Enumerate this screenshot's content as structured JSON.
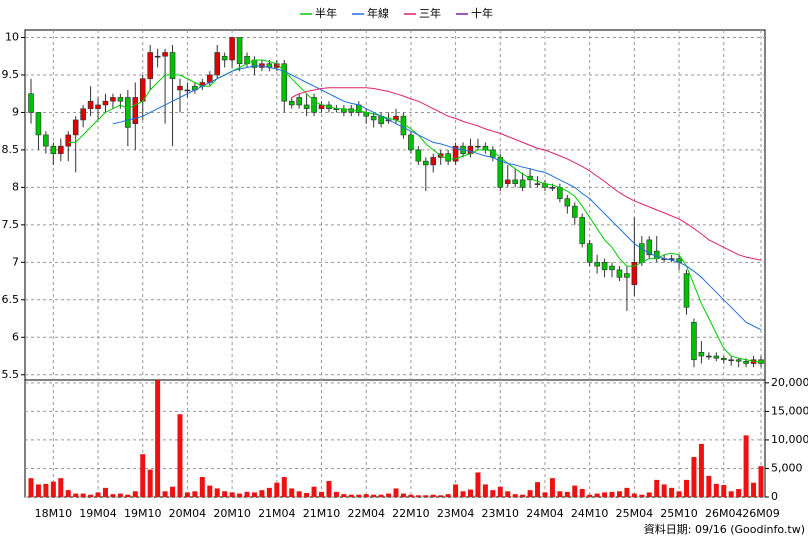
{
  "chart_data": {
    "type": "candlestick",
    "categories": [
      null,
      null,
      null,
      "18M10",
      null,
      null,
      null,
      null,
      null,
      "19M04",
      null,
      null,
      null,
      null,
      null,
      "19M10",
      null,
      null,
      null,
      null,
      null,
      "20M04",
      null,
      null,
      null,
      null,
      null,
      "20M10",
      null,
      null,
      null,
      null,
      null,
      "21M04",
      null,
      null,
      null,
      null,
      null,
      "21M10",
      null,
      null,
      null,
      null,
      null,
      "22M04",
      null,
      null,
      null,
      null,
      null,
      "22M10",
      null,
      null,
      null,
      null,
      null,
      "23M04",
      null,
      null,
      null,
      null,
      null,
      "23M10",
      null,
      null,
      null,
      null,
      null,
      "24M04",
      null,
      null,
      null,
      null,
      null,
      "24M10",
      null,
      null,
      null,
      null,
      null,
      "25M04",
      null,
      null,
      null,
      null,
      null,
      "25M10",
      null,
      null,
      null,
      null,
      null,
      "26M04",
      null,
      null,
      null,
      null,
      "26M09"
    ],
    "open": [
      9.25,
      9.0,
      8.7,
      8.55,
      8.45,
      8.55,
      8.7,
      8.9,
      9.05,
      9.05,
      9.1,
      9.15,
      9.2,
      9.2,
      8.85,
      9.15,
      9.45,
      9.75,
      9.75,
      9.8,
      9.3,
      9.3,
      9.35,
      9.35,
      9.4,
      9.5,
      9.75,
      9.7,
      10.0,
      9.75,
      9.7,
      9.6,
      9.65,
      9.6,
      9.65,
      9.15,
      9.2,
      9.1,
      9.2,
      9.05,
      9.1,
      9.05,
      9.05,
      9.05,
      9.1,
      9.0,
      8.95,
      8.95,
      8.9,
      8.9,
      8.95,
      8.7,
      8.5,
      8.35,
      8.3,
      8.4,
      8.45,
      8.35,
      8.55,
      8.45,
      8.55,
      8.55,
      8.5,
      8.4,
      8.05,
      8.1,
      8.1,
      8.15,
      8.05,
      8.05,
      8.0,
      8.0,
      7.85,
      7.75,
      7.6,
      7.25,
      7.0,
      7.0,
      6.95,
      6.9,
      6.85,
      6.7,
      7.25,
      7.3,
      7.15,
      7.05,
      7.05,
      7.05,
      6.85,
      6.2,
      5.8,
      5.75,
      5.75,
      5.72,
      5.7,
      5.7,
      5.68,
      5.65,
      5.7
    ],
    "high": [
      9.45,
      9.0,
      8.75,
      8.6,
      8.65,
      8.75,
      8.95,
      9.1,
      9.35,
      9.2,
      9.25,
      9.25,
      9.25,
      9.3,
      9.4,
      9.5,
      9.9,
      9.85,
      9.85,
      9.9,
      9.45,
      9.4,
      9.4,
      9.45,
      9.55,
      9.9,
      9.8,
      10.0,
      10.0,
      9.8,
      9.75,
      9.7,
      9.7,
      9.7,
      9.7,
      9.2,
      9.25,
      9.25,
      9.25,
      9.15,
      9.15,
      9.1,
      9.1,
      9.1,
      9.15,
      9.05,
      9.0,
      9.0,
      9.0,
      9.05,
      9.0,
      8.75,
      8.55,
      8.4,
      8.45,
      8.5,
      8.5,
      8.6,
      8.6,
      8.65,
      8.65,
      8.6,
      8.55,
      8.45,
      8.3,
      8.25,
      8.2,
      8.25,
      8.15,
      8.1,
      8.05,
      8.05,
      7.9,
      7.8,
      7.65,
      7.3,
      7.1,
      7.05,
      7.0,
      6.95,
      6.95,
      7.6,
      7.35,
      7.35,
      7.35,
      7.1,
      7.1,
      7.1,
      6.9,
      6.25,
      5.95,
      5.8,
      5.8,
      5.75,
      5.75,
      5.72,
      5.72,
      5.75,
      5.75
    ],
    "low": [
      8.85,
      8.5,
      8.45,
      8.3,
      8.35,
      8.35,
      8.2,
      8.8,
      8.95,
      8.9,
      9.0,
      9.05,
      9.05,
      8.55,
      8.5,
      8.9,
      9.3,
      9.6,
      8.85,
      8.55,
      9.0,
      9.2,
      9.25,
      9.3,
      9.35,
      9.45,
      9.6,
      9.6,
      9.55,
      9.6,
      9.5,
      9.55,
      9.55,
      9.55,
      9.0,
      9.05,
      9.05,
      8.95,
      8.95,
      9.0,
      9.0,
      9.0,
      8.95,
      8.95,
      8.95,
      8.85,
      8.8,
      8.8,
      8.85,
      8.85,
      8.65,
      8.45,
      8.3,
      7.95,
      8.2,
      8.3,
      8.3,
      8.3,
      8.4,
      8.4,
      8.5,
      8.45,
      8.35,
      7.95,
      8.0,
      8.0,
      7.95,
      8.0,
      8.0,
      7.95,
      7.95,
      7.8,
      7.65,
      7.5,
      7.2,
      6.95,
      6.85,
      6.8,
      6.8,
      6.75,
      6.35,
      6.55,
      6.95,
      7.05,
      7.0,
      7.0,
      7.0,
      6.9,
      6.3,
      5.6,
      5.65,
      5.7,
      5.68,
      5.65,
      5.62,
      5.6,
      5.6,
      5.6,
      5.6
    ],
    "close": [
      9.0,
      8.7,
      8.55,
      8.45,
      8.55,
      8.7,
      8.9,
      9.05,
      9.15,
      9.1,
      9.15,
      9.2,
      9.15,
      8.8,
      9.2,
      9.45,
      9.8,
      9.75,
      9.8,
      9.45,
      9.35,
      9.3,
      9.3,
      9.4,
      9.5,
      9.8,
      9.7,
      10.0,
      9.65,
      9.65,
      9.6,
      9.65,
      9.6,
      9.65,
      9.15,
      9.1,
      9.1,
      9.05,
      9.0,
      9.1,
      9.05,
      9.05,
      9.0,
      9.0,
      9.0,
      8.95,
      8.9,
      8.85,
      8.9,
      8.95,
      8.7,
      8.5,
      8.35,
      8.3,
      8.4,
      8.45,
      8.35,
      8.55,
      8.45,
      8.55,
      8.55,
      8.5,
      8.4,
      8.0,
      8.1,
      8.05,
      8.0,
      8.1,
      8.05,
      8.0,
      8.0,
      7.85,
      7.75,
      7.6,
      7.25,
      7.0,
      6.95,
      6.9,
      6.9,
      6.8,
      6.8,
      7.0,
      7.0,
      7.1,
      7.05,
      7.05,
      7.05,
      7.0,
      6.4,
      5.7,
      5.75,
      5.75,
      5.72,
      5.7,
      5.7,
      5.68,
      5.65,
      5.7,
      5.65
    ],
    "up_color": "#e00000",
    "down_color": "#00c000",
    "series": [
      {
        "name": "半年",
        "color": "#00cc00",
        "values": [
          null,
          null,
          null,
          null,
          null,
          8.6,
          8.6,
          8.7,
          8.8,
          8.9,
          9.0,
          9.05,
          9.1,
          9.05,
          9.1,
          9.15,
          9.3,
          9.4,
          9.5,
          9.5,
          9.5,
          9.45,
          9.4,
          9.35,
          9.35,
          9.45,
          9.5,
          9.55,
          9.6,
          9.65,
          9.7,
          9.7,
          9.68,
          9.65,
          9.55,
          9.45,
          9.35,
          9.25,
          9.15,
          9.1,
          9.08,
          9.05,
          9.05,
          9.03,
          9.02,
          9.0,
          8.98,
          8.95,
          8.92,
          8.9,
          8.85,
          8.78,
          8.7,
          8.58,
          8.5,
          8.42,
          8.38,
          8.38,
          8.42,
          8.45,
          8.5,
          8.5,
          8.48,
          8.4,
          8.32,
          8.25,
          8.18,
          8.12,
          8.08,
          8.05,
          8.03,
          8.0,
          7.95,
          7.88,
          7.75,
          7.6,
          7.45,
          7.3,
          7.2,
          7.05,
          6.95,
          6.95,
          7.0,
          7.05,
          7.05,
          7.1,
          7.12,
          7.1,
          6.95,
          6.7,
          6.45,
          6.25,
          6.05,
          5.85,
          5.75,
          5.72,
          5.7,
          5.68,
          5.67
        ]
      },
      {
        "name": "年線",
        "color": "#1f6fdf",
        "values": [
          null,
          null,
          null,
          null,
          null,
          null,
          null,
          null,
          null,
          null,
          null,
          8.85,
          8.87,
          8.9,
          8.92,
          8.95,
          9.0,
          9.05,
          9.1,
          9.15,
          9.2,
          9.25,
          9.3,
          9.35,
          9.4,
          9.45,
          9.5,
          9.55,
          9.58,
          9.6,
          9.62,
          9.62,
          9.6,
          9.58,
          9.55,
          9.5,
          9.45,
          9.4,
          9.35,
          9.3,
          9.25,
          9.2,
          9.15,
          9.12,
          9.1,
          9.05,
          9.0,
          8.95,
          8.9,
          8.85,
          8.8,
          8.75,
          8.7,
          8.65,
          8.6,
          8.58,
          8.55,
          8.52,
          8.5,
          8.48,
          8.45,
          8.42,
          8.4,
          8.35,
          8.32,
          8.3,
          8.27,
          8.25,
          8.22,
          8.2,
          8.15,
          8.1,
          8.05,
          8.0,
          7.92,
          7.85,
          7.75,
          7.65,
          7.55,
          7.45,
          7.35,
          7.25,
          7.18,
          7.12,
          7.08,
          7.05,
          7.03,
          7.0,
          6.95,
          6.88,
          6.8,
          6.7,
          6.6,
          6.5,
          6.4,
          6.3,
          6.2,
          6.15,
          6.1
        ]
      },
      {
        "name": "三年",
        "color": "#e0206a",
        "values": [
          null,
          null,
          null,
          null,
          null,
          null,
          null,
          null,
          null,
          null,
          null,
          null,
          null,
          null,
          null,
          null,
          null,
          null,
          null,
          null,
          null,
          null,
          null,
          null,
          null,
          null,
          null,
          null,
          null,
          null,
          null,
          null,
          null,
          null,
          null,
          9.2,
          9.25,
          9.28,
          9.3,
          9.32,
          9.33,
          9.33,
          9.33,
          9.33,
          9.33,
          9.33,
          9.32,
          9.3,
          9.28,
          9.25,
          9.22,
          9.18,
          9.15,
          9.1,
          9.05,
          9.0,
          8.95,
          8.92,
          8.88,
          8.85,
          8.82,
          8.78,
          8.75,
          8.72,
          8.68,
          8.64,
          8.6,
          8.56,
          8.52,
          8.5,
          8.46,
          8.42,
          8.38,
          8.33,
          8.28,
          8.22,
          8.15,
          8.08,
          8.0,
          7.93,
          7.87,
          7.82,
          7.78,
          7.74,
          7.7,
          7.66,
          7.62,
          7.58,
          7.52,
          7.45,
          7.38,
          7.3,
          7.25,
          7.2,
          7.15,
          7.1,
          7.07,
          7.05,
          7.03
        ]
      },
      {
        "name": "十年",
        "color": "#7a1fa0",
        "values": [
          null,
          null,
          null,
          null,
          null,
          null,
          null,
          null,
          null,
          null,
          null,
          null,
          null,
          null,
          null,
          null,
          null,
          null,
          null,
          null,
          null,
          null,
          null,
          null,
          null,
          null,
          null,
          null,
          null,
          null,
          null,
          null,
          null,
          null,
          null,
          null,
          null,
          null,
          null,
          null,
          null,
          null,
          null,
          null,
          null,
          null,
          null,
          null,
          null,
          null,
          null,
          null,
          null,
          null,
          null,
          null,
          null,
          null,
          null,
          null,
          null,
          null,
          null,
          null,
          null,
          null,
          null,
          null,
          null,
          null,
          null,
          null,
          null,
          null,
          null,
          null,
          null,
          null,
          null,
          null,
          null,
          null,
          null,
          null,
          null,
          null,
          null,
          null,
          null,
          null,
          null,
          null,
          null,
          null,
          null,
          null,
          null,
          null,
          null
        ]
      }
    ],
    "ylim": [
      5.43,
      10.1
    ],
    "yticks": [
      5.5,
      6,
      6.5,
      7,
      7.5,
      8,
      8.5,
      9,
      9.5,
      10
    ],
    "grid": true,
    "legend": "top",
    "volume": {
      "color": "#ee1111",
      "values": [
        3300,
        2200,
        2300,
        2700,
        3300,
        1200,
        600,
        600,
        400,
        800,
        1600,
        500,
        600,
        400,
        1000,
        7500,
        4800,
        20500,
        1000,
        1800,
        14500,
        800,
        1000,
        3500,
        2000,
        1500,
        1000,
        800,
        600,
        900,
        800,
        1200,
        1600,
        2500,
        3500,
        1500,
        1000,
        700,
        1800,
        900,
        2800,
        900,
        500,
        400,
        400,
        500,
        400,
        400,
        600,
        1500,
        600,
        400,
        300,
        300,
        400,
        300,
        500,
        2200,
        1000,
        1300,
        4300,
        2200,
        1200,
        1800,
        1000,
        500,
        400,
        1200,
        2600,
        800,
        3300,
        1000,
        900,
        2000,
        1400,
        400,
        600,
        800,
        900,
        1000,
        1600,
        600,
        400,
        800,
        3000,
        2200,
        1600,
        1000,
        3000,
        7000,
        9300,
        3700,
        2300,
        2100,
        1000,
        1400,
        10800,
        2500,
        5400
      ],
      "ylim": [
        0,
        20500
      ],
      "yticks": [
        0,
        {
          "value": 5000,
          "label": "5,000"
        },
        {
          "value": 10000,
          "label": "10,000"
        },
        {
          "value": 15000,
          "label": "15,000"
        },
        {
          "value": 20000,
          "label": "20,000"
        }
      ]
    },
    "footer": "資料日期: 09/16 (Goodinfo.tw)"
  }
}
